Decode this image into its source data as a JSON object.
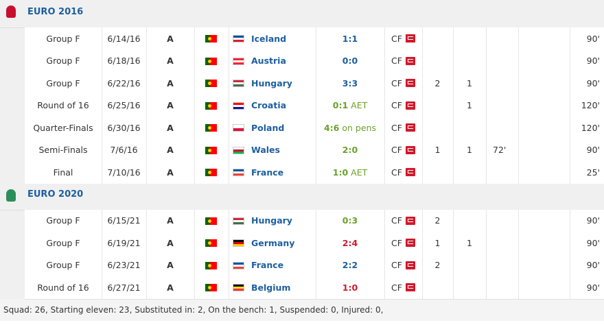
{
  "sections": [
    {
      "title": "EURO 2016",
      "rows": [
        {
          "round": "Group F",
          "date": "6/14/16",
          "venue": "A",
          "opponent": "Iceland",
          "flag": [
            "#02529c",
            "#ffffff",
            "#dc1e35"
          ],
          "score": "1:1",
          "note": null,
          "color": "#1d5fa0",
          "position": "CF",
          "goals": null,
          "assists": null,
          "minute": null,
          "minutes": "90'"
        },
        {
          "round": "Group F",
          "date": "6/18/16",
          "venue": "A",
          "opponent": "Austria",
          "flag": [
            "#ed2939",
            "#ffffff",
            "#ed2939"
          ],
          "score": "0:0",
          "note": null,
          "color": "#1d5fa0",
          "position": "CF",
          "goals": null,
          "assists": null,
          "minute": null,
          "minutes": "90'"
        },
        {
          "round": "Group F",
          "date": "6/22/16",
          "venue": "A",
          "opponent": "Hungary",
          "flag": [
            "#cd2a3e",
            "#ffffff",
            "#436f4d"
          ],
          "score": "3:3",
          "note": null,
          "color": "#1d5fa0",
          "position": "CF",
          "goals": "2",
          "assists": "1",
          "minute": null,
          "minutes": "90'"
        },
        {
          "round": "Round of 16",
          "date": "6/25/16",
          "venue": "A",
          "opponent": "Croatia",
          "flag": [
            "#ff0000",
            "#ffffff",
            "#171796"
          ],
          "score": "0:1",
          "note": "AET",
          "color": "#6aa22a",
          "position": "CF",
          "goals": null,
          "assists": "1",
          "minute": null,
          "minutes": "120'"
        },
        {
          "round": "Quarter-Finals",
          "date": "6/30/16",
          "venue": "A",
          "opponent": "Poland",
          "flag": [
            "#ffffff",
            "#dc143c"
          ],
          "score": "4:6",
          "note": "on pens",
          "color": "#6aa22a",
          "position": "CF",
          "goals": null,
          "assists": null,
          "minute": null,
          "minutes": "120'"
        },
        {
          "round": "Semi-Finals",
          "date": "7/6/16",
          "venue": "A",
          "opponent": "Wales",
          "flag": [
            "#ffffff",
            "#c8102e",
            "#00b140"
          ],
          "score": "2:0",
          "note": null,
          "color": "#6aa22a",
          "position": "CF",
          "goals": "1",
          "assists": "1",
          "minute": "72'",
          "minutes": "90'"
        },
        {
          "round": "Final",
          "date": "7/10/16",
          "venue": "A",
          "opponent": "France",
          "flag": [
            "#0055a4",
            "#ffffff",
            "#ef4135"
          ],
          "score": "1:0",
          "note": "AET",
          "color": "#6aa22a",
          "position": "CF",
          "goals": null,
          "assists": null,
          "minute": null,
          "minutes": "25'"
        }
      ]
    },
    {
      "title": "EURO 2020",
      "rows": [
        {
          "round": "Group F",
          "date": "6/15/21",
          "venue": "A",
          "opponent": "Hungary",
          "flag": [
            "#cd2a3e",
            "#ffffff",
            "#436f4d"
          ],
          "score": "0:3",
          "note": null,
          "color": "#6aa22a",
          "position": "CF",
          "goals": "2",
          "assists": null,
          "minute": null,
          "minutes": "90'"
        },
        {
          "round": "Group F",
          "date": "6/19/21",
          "venue": "A",
          "opponent": "Germany",
          "flag": [
            "#000000",
            "#dd0000",
            "#ffce00"
          ],
          "score": "2:4",
          "note": null,
          "color": "#d0192c",
          "position": "CF",
          "goals": "1",
          "assists": "1",
          "minute": null,
          "minutes": "90'"
        },
        {
          "round": "Group F",
          "date": "6/23/21",
          "venue": "A",
          "opponent": "France",
          "flag": [
            "#0055a4",
            "#ffffff",
            "#ef4135"
          ],
          "score": "2:2",
          "note": null,
          "color": "#1d5fa0",
          "position": "CF",
          "goals": "2",
          "assists": null,
          "minute": null,
          "minutes": "90'"
        },
        {
          "round": "Round of 16",
          "date": "6/27/21",
          "venue": "A",
          "opponent": "Belgium",
          "flag": [
            "#000000",
            "#fdda24",
            "#ef3340"
          ],
          "score": "1:0",
          "note": null,
          "color": "#d0192c",
          "position": "CF",
          "goals": null,
          "assists": null,
          "minute": null,
          "minutes": "90'"
        }
      ]
    }
  ],
  "footer": "Squad: 26, Starting eleven: 23, Substituted in: 2, On the bench: 1, Suspended: 0, Injured: 0,"
}
